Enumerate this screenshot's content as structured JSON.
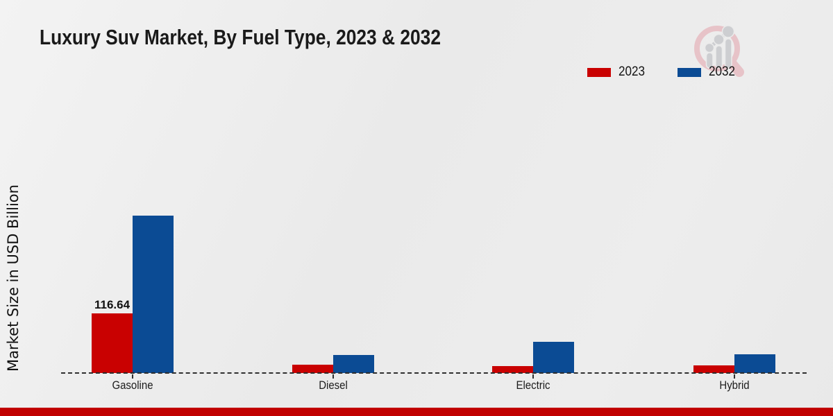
{
  "title": "Luxury Suv Market, By Fuel Type, 2023 & 2032",
  "y_axis_label": "Market Size in USD Billion",
  "legend": {
    "position": "top-right",
    "items": [
      {
        "label": "2023",
        "color": "#c90101"
      },
      {
        "label": "2032",
        "color": "#0b4b94"
      }
    ]
  },
  "colors": {
    "bar_2023": "#c90101",
    "bar_2032": "#0b4b94",
    "footer_stripe": "#c10000",
    "baseline": "#2e2e2e",
    "background": "#ececec",
    "watermark_pink": "#e7c3c8",
    "watermark_gray": "#cdced1"
  },
  "chart_data": {
    "type": "bar",
    "categories": [
      "Gasoline",
      "Diesel",
      "Electric",
      "Hybrid"
    ],
    "series": [
      {
        "name": "2023",
        "color": "#c90101",
        "values": [
          116.64,
          16.3,
          13.6,
          14.9
        ]
      },
      {
        "name": "2032",
        "color": "#0b4b94",
        "values": [
          307.9,
          35.3,
          61.0,
          36.6
        ]
      }
    ],
    "title": "Luxury Suv Market, By Fuel Type, 2023 & 2032",
    "xlabel": "",
    "ylabel": "Market Size in USD Billion",
    "ylim": [
      0,
      320
    ],
    "grid": false,
    "axis_style": "dashed-zero-baseline-only",
    "legend_position": "top-right",
    "data_labels": [
      {
        "category": "Gasoline",
        "series": "2023",
        "text": "116.64"
      }
    ]
  },
  "watermark": {
    "icon": "magnifier-bar-chart-logo"
  }
}
